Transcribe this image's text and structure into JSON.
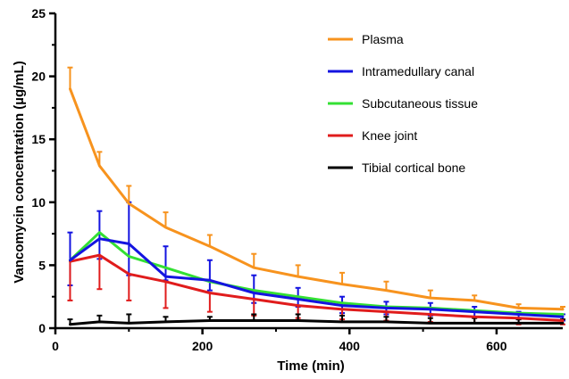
{
  "chart_data": {
    "type": "line",
    "title": "",
    "xlabel": "Time (min)",
    "ylabel": "Vancomycin concentration (µg/mL)",
    "xlim": [
      0,
      690
    ],
    "ylim": [
      0,
      25
    ],
    "x_ticks": [
      0,
      200,
      400,
      600
    ],
    "y_ticks": [
      0,
      5,
      10,
      15,
      20,
      25
    ],
    "grid": false,
    "legend_position": "top-right",
    "error_bars": "upper",
    "series": [
      {
        "name": "Plasma",
        "color": "#f7931e",
        "x": [
          20,
          60,
          100,
          150,
          210,
          270,
          330,
          390,
          450,
          510,
          570,
          630,
          690
        ],
        "y": [
          19.0,
          12.9,
          9.9,
          8.0,
          6.5,
          4.8,
          4.1,
          3.5,
          3.0,
          2.4,
          2.2,
          1.6,
          1.5
        ],
        "err_upper": [
          20.7,
          14.0,
          11.3,
          9.2,
          7.4,
          5.9,
          5.0,
          4.4,
          3.7,
          3.0,
          2.6,
          1.9,
          1.7
        ]
      },
      {
        "name": "Intramedullary canal",
        "color": "#1414e0",
        "x": [
          20,
          60,
          100,
          150,
          210,
          270,
          330,
          390,
          450,
          510,
          570,
          630,
          690
        ],
        "y": [
          5.4,
          7.1,
          6.7,
          4.1,
          3.8,
          2.8,
          2.3,
          1.8,
          1.6,
          1.5,
          1.3,
          1.1,
          0.9
        ],
        "err_upper": [
          7.6,
          9.3,
          10.0,
          6.5,
          5.4,
          4.2,
          3.2,
          2.5,
          2.1,
          2.0,
          1.7,
          1.3,
          1.1
        ],
        "err_lower": [
          3.4,
          5.5,
          4.2,
          3.8,
          3.0,
          2.0,
          1.7,
          1.2,
          1.1,
          1.0,
          0.9,
          0.7,
          0.6
        ]
      },
      {
        "name": "Subcutaneous tissue",
        "color": "#33e033",
        "x": [
          20,
          60,
          100,
          150,
          210,
          270,
          330,
          390,
          450,
          510,
          570,
          630,
          690
        ],
        "y": [
          5.4,
          7.6,
          5.7,
          4.8,
          3.7,
          3.0,
          2.5,
          2.0,
          1.7,
          1.6,
          1.4,
          1.2,
          1.1
        ]
      },
      {
        "name": "Knee joint",
        "color": "#e01c1c",
        "x": [
          20,
          60,
          100,
          150,
          210,
          270,
          330,
          390,
          450,
          510,
          570,
          630,
          690
        ],
        "y": [
          5.3,
          5.8,
          4.3,
          3.7,
          2.8,
          2.3,
          1.8,
          1.5,
          1.3,
          1.1,
          0.9,
          0.8,
          0.6
        ],
        "err_lower": [
          2.2,
          3.1,
          2.2,
          1.6,
          1.3,
          1.0,
          0.8,
          0.7,
          0.6,
          0.5,
          0.4,
          0.3,
          0.3
        ]
      },
      {
        "name": "Tibial cortical bone",
        "color": "#000000",
        "x": [
          20,
          60,
          100,
          150,
          210,
          270,
          330,
          390,
          450,
          510,
          570,
          630,
          690
        ],
        "y": [
          0.3,
          0.5,
          0.4,
          0.5,
          0.6,
          0.6,
          0.6,
          0.5,
          0.5,
          0.4,
          0.4,
          0.4,
          0.4
        ],
        "err_upper": [
          0.7,
          1.0,
          1.1,
          0.9,
          0.9,
          1.1,
          1.1,
          1.0,
          0.9,
          0.8,
          0.8,
          0.7,
          0.7
        ]
      }
    ]
  }
}
